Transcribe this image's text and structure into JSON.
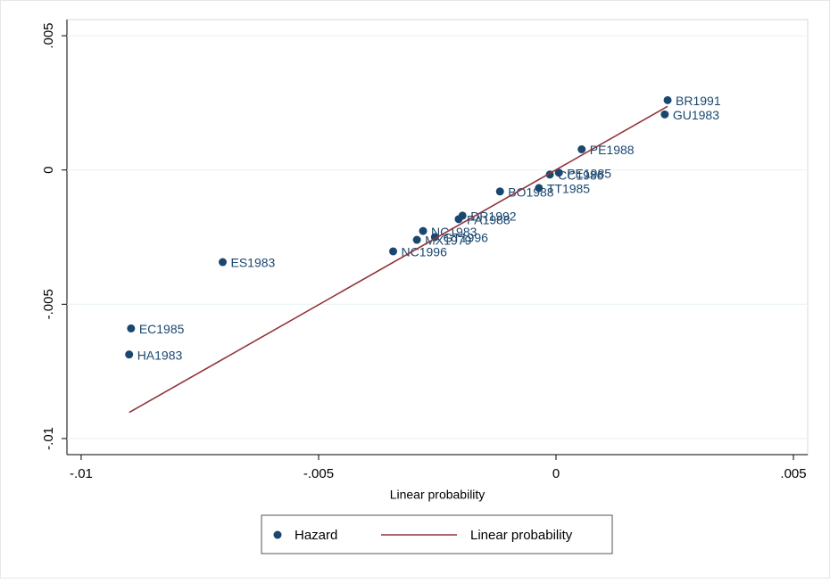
{
  "chart_data": {
    "type": "scatter",
    "x_label": "Linear probability",
    "xlim": [
      -0.0103,
      0.0053
    ],
    "ylim": [
      -0.0106,
      0.0056
    ],
    "xticks": [
      {
        "value": -0.01,
        "label": "-.01"
      },
      {
        "value": -0.005,
        "label": "-.005"
      },
      0,
      {
        "value": 0.005,
        "label": ".005"
      }
    ],
    "yticks": [
      {
        "value": -0.01,
        "label": "-.01"
      },
      {
        "value": -0.005,
        "label": "-.005"
      },
      0,
      {
        "value": 0.005,
        "label": ".005"
      }
    ],
    "grid": true,
    "legend": "bottom",
    "series": [
      {
        "name": "Hazard",
        "type": "scatter",
        "color": "#1a476f",
        "point_labels": [
          "BR1991",
          "GU1983",
          "PE1988",
          "PE1985",
          "CC1986",
          "TT1985",
          "BO1988",
          "DR1992",
          "PA1988",
          "NC1983",
          "GT1996",
          "MX1979",
          "NC1996",
          "ES1983",
          "EC1985",
          "HA1983"
        ],
        "x": [
          0.00235,
          0.00229,
          0.00054,
          6e-05,
          -0.00013,
          -0.00036,
          -0.00118,
          -0.00197,
          -0.00205,
          -0.0028,
          -0.00255,
          -0.00293,
          -0.00343,
          -0.00702,
          -0.00895,
          -0.00899
        ],
        "values": [
          0.0026,
          0.00207,
          0.00077,
          -0.0001,
          -0.00017,
          -0.00067,
          -0.0008,
          -0.0017,
          -0.00183,
          -0.00227,
          -0.0025,
          -0.0026,
          -0.00303,
          -0.00343,
          -0.0059,
          -0.00687
        ]
      },
      {
        "name": "Linear probability",
        "type": "line",
        "color": "#90353b",
        "x": [
          -0.00899,
          0.00235
        ],
        "values": [
          -0.00903,
          0.00237
        ]
      }
    ]
  }
}
